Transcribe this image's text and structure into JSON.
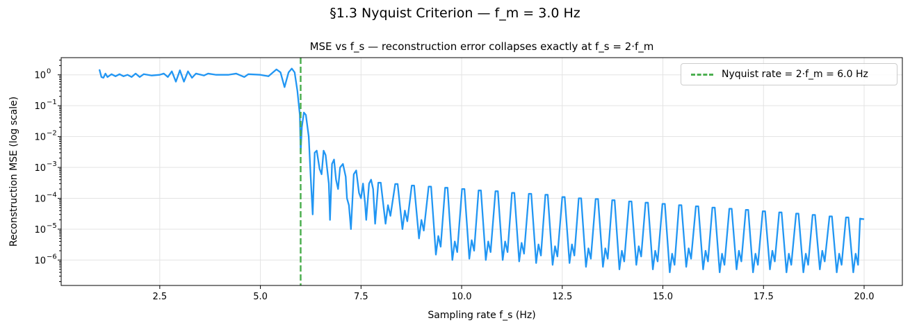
{
  "suptitle": "§1.3 Nyquist Criterion — f_m = 3.0 Hz",
  "chart_data": {
    "type": "line",
    "title": "MSE vs f_s — reconstruction error collapses exactly at f_s = 2·f_m",
    "xlabel": "Sampling rate f_s (Hz)",
    "ylabel": "Reconstruction MSE (log scale)",
    "xlim": [
      0.05,
      20.95
    ],
    "ylim": [
      1.5e-07,
      3.6
    ],
    "yscale": "log",
    "grid": true,
    "legend_position": "top-right",
    "xticks": [
      "2.5",
      "5.0",
      "7.5",
      "10.0",
      "12.5",
      "15.0",
      "17.5",
      "20.0"
    ],
    "yticks": [
      "0",
      "-1",
      "-2",
      "-3",
      "-4",
      "-5",
      "-6"
    ],
    "ytick_base": "10",
    "series": [
      {
        "color": "#2196f3",
        "points": [
          [
            1.0,
            1.5
          ],
          [
            1.05,
            0.85
          ],
          [
            1.1,
            0.8
          ],
          [
            1.15,
            1.1
          ],
          [
            1.2,
            0.85
          ],
          [
            1.3,
            1.05
          ],
          [
            1.4,
            0.9
          ],
          [
            1.5,
            1.05
          ],
          [
            1.6,
            0.9
          ],
          [
            1.7,
            1.0
          ],
          [
            1.8,
            0.85
          ],
          [
            1.9,
            1.1
          ],
          [
            2.0,
            0.85
          ],
          [
            2.1,
            1.05
          ],
          [
            2.3,
            0.95
          ],
          [
            2.5,
            1.0
          ],
          [
            2.6,
            1.1
          ],
          [
            2.7,
            0.85
          ],
          [
            2.8,
            1.3
          ],
          [
            2.9,
            0.6
          ],
          [
            3.0,
            1.4
          ],
          [
            3.1,
            0.6
          ],
          [
            3.2,
            1.3
          ],
          [
            3.3,
            0.8
          ],
          [
            3.4,
            1.1
          ],
          [
            3.6,
            0.95
          ],
          [
            3.7,
            1.1
          ],
          [
            3.9,
            1.0
          ],
          [
            4.2,
            1.0
          ],
          [
            4.4,
            1.1
          ],
          [
            4.6,
            0.85
          ],
          [
            4.7,
            1.05
          ],
          [
            5.0,
            1.0
          ],
          [
            5.2,
            0.9
          ],
          [
            5.4,
            1.5
          ],
          [
            5.5,
            1.2
          ],
          [
            5.6,
            0.4
          ],
          [
            5.7,
            1.2
          ],
          [
            5.78,
            1.6
          ],
          [
            5.85,
            1.2
          ],
          [
            5.92,
            0.3
          ],
          [
            5.98,
            0.05
          ],
          [
            6.0,
            0.003
          ],
          [
            6.03,
            0.02
          ],
          [
            6.08,
            0.06
          ],
          [
            6.13,
            0.05
          ],
          [
            6.2,
            0.01
          ],
          [
            6.25,
            0.0005
          ],
          [
            6.3,
            3e-05
          ],
          [
            6.35,
            0.003
          ],
          [
            6.4,
            0.0035
          ],
          [
            6.47,
            0.0009
          ],
          [
            6.52,
            0.0006
          ],
          [
            6.57,
            0.0035
          ],
          [
            6.62,
            0.0025
          ],
          [
            6.7,
            0.0003
          ],
          [
            6.73,
            2e-05
          ],
          [
            6.78,
            0.0013
          ],
          [
            6.83,
            0.0018
          ],
          [
            6.88,
            0.0004
          ],
          [
            6.93,
            0.0002
          ],
          [
            6.98,
            0.001
          ],
          [
            7.05,
            0.0013
          ],
          [
            7.12,
            0.0005
          ],
          [
            7.15,
            0.0001
          ],
          [
            7.2,
            6e-05
          ],
          [
            7.25,
            1e-05
          ],
          [
            7.32,
            0.0006
          ],
          [
            7.38,
            0.0008
          ],
          [
            7.45,
            0.00015
          ],
          [
            7.5,
            0.0001
          ],
          [
            7.55,
            0.0003
          ],
          [
            7.6,
            7e-05
          ],
          [
            7.63,
            2e-05
          ],
          [
            7.7,
            0.0003
          ],
          [
            7.75,
            0.0004
          ],
          [
            7.8,
            0.0002
          ],
          [
            7.85,
            1.5e-05
          ],
          [
            7.93,
            0.00032
          ],
          [
            7.99,
            0.00032
          ],
          [
            8.11,
            1.5e-05
          ],
          [
            8.17,
            6e-05
          ],
          [
            8.23,
            2.7e-05
          ],
          [
            8.35,
            0.00029
          ],
          [
            8.41,
            0.00029
          ],
          [
            8.53,
            1e-05
          ],
          [
            8.59,
            4e-05
          ],
          [
            8.65,
            1.8e-05
          ],
          [
            8.76,
            0.00026
          ],
          [
            8.82,
            0.00026
          ],
          [
            8.94,
            5e-06
          ],
          [
            9.0,
            2e-05
          ],
          [
            9.06,
            9e-06
          ],
          [
            9.18,
            0.00024
          ],
          [
            9.24,
            0.00024
          ],
          [
            9.36,
            1.5e-06
          ],
          [
            9.42,
            6e-06
          ],
          [
            9.48,
            2.7e-06
          ],
          [
            9.59,
            0.00022
          ],
          [
            9.65,
            0.00022
          ],
          [
            9.77,
            1e-06
          ],
          [
            9.83,
            4e-06
          ],
          [
            9.89,
            1.8e-06
          ],
          [
            10.01,
            0.0002
          ],
          [
            10.07,
            0.0002
          ],
          [
            10.19,
            1.1e-06
          ],
          [
            10.25,
            4.4e-06
          ],
          [
            10.31,
            2e-06
          ],
          [
            10.42,
            0.00018
          ],
          [
            10.48,
            0.00018
          ],
          [
            10.6,
            1e-06
          ],
          [
            10.66,
            4e-06
          ],
          [
            10.72,
            1.8e-06
          ],
          [
            10.84,
            0.00017
          ],
          [
            10.9,
            0.00017
          ],
          [
            11.02,
            1e-06
          ],
          [
            11.08,
            4e-06
          ],
          [
            11.14,
            1.8e-06
          ],
          [
            11.25,
            0.00015
          ],
          [
            11.31,
            0.00015
          ],
          [
            11.43,
            9e-07
          ],
          [
            11.49,
            3.6e-06
          ],
          [
            11.55,
            1.6e-06
          ],
          [
            11.67,
            0.00014
          ],
          [
            11.73,
            0.00014
          ],
          [
            11.85,
            8e-07
          ],
          [
            11.91,
            3.2e-06
          ],
          [
            11.97,
            1.4e-06
          ],
          [
            12.08,
            0.00013
          ],
          [
            12.14,
            0.00013
          ],
          [
            12.26,
            7e-07
          ],
          [
            12.32,
            2.8e-06
          ],
          [
            12.38,
            1.3e-06
          ],
          [
            12.5,
            0.00011
          ],
          [
            12.56,
            0.00011
          ],
          [
            12.68,
            8e-07
          ],
          [
            12.74,
            3.2e-06
          ],
          [
            12.8,
            1.4e-06
          ],
          [
            12.91,
            0.0001
          ],
          [
            12.97,
            0.0001
          ],
          [
            13.09,
            6e-07
          ],
          [
            13.15,
            2.4e-06
          ],
          [
            13.21,
            1.1e-06
          ],
          [
            13.33,
            9.5e-05
          ],
          [
            13.39,
            9.5e-05
          ],
          [
            13.51,
            6e-07
          ],
          [
            13.57,
            2.4e-06
          ],
          [
            13.63,
            1.1e-06
          ],
          [
            13.74,
            8.7e-05
          ],
          [
            13.8,
            8.7e-05
          ],
          [
            13.92,
            5e-07
          ],
          [
            13.98,
            2e-06
          ],
          [
            14.04,
            9e-07
          ],
          [
            14.16,
            7.9e-05
          ],
          [
            14.22,
            7.9e-05
          ],
          [
            14.34,
            7e-07
          ],
          [
            14.4,
            2.8e-06
          ],
          [
            14.46,
            1.3e-06
          ],
          [
            14.57,
            7.2e-05
          ],
          [
            14.63,
            7.2e-05
          ],
          [
            14.75,
            5e-07
          ],
          [
            14.81,
            2e-06
          ],
          [
            14.87,
            9e-07
          ],
          [
            14.99,
            6.6e-05
          ],
          [
            15.05,
            6.6e-05
          ],
          [
            15.17,
            4e-07
          ],
          [
            15.23,
            1.6e-06
          ],
          [
            15.29,
            7e-07
          ],
          [
            15.4,
            6e-05
          ],
          [
            15.46,
            6e-05
          ],
          [
            15.58,
            6e-07
          ],
          [
            15.64,
            2.4e-06
          ],
          [
            15.7,
            1.1e-06
          ],
          [
            15.82,
            5.5e-05
          ],
          [
            15.88,
            5.5e-05
          ],
          [
            16.0,
            5e-07
          ],
          [
            16.06,
            2e-06
          ],
          [
            16.12,
            9e-07
          ],
          [
            16.23,
            5e-05
          ],
          [
            16.29,
            5e-05
          ],
          [
            16.41,
            4e-07
          ],
          [
            16.47,
            1.6e-06
          ],
          [
            16.53,
            7e-07
          ],
          [
            16.65,
            4.6e-05
          ],
          [
            16.71,
            4.6e-05
          ],
          [
            16.83,
            5e-07
          ],
          [
            16.89,
            2e-06
          ],
          [
            16.95,
            9e-07
          ],
          [
            17.06,
            4.2e-05
          ],
          [
            17.12,
            4.2e-05
          ],
          [
            17.24,
            4e-07
          ],
          [
            17.3,
            1.6e-06
          ],
          [
            17.36,
            7e-07
          ],
          [
            17.48,
            3.8e-05
          ],
          [
            17.54,
            3.8e-05
          ],
          [
            17.66,
            5e-07
          ],
          [
            17.72,
            2e-06
          ],
          [
            17.78,
            9e-07
          ],
          [
            17.89,
            3.5e-05
          ],
          [
            17.95,
            3.5e-05
          ],
          [
            18.07,
            4e-07
          ],
          [
            18.13,
            1.6e-06
          ],
          [
            18.19,
            7e-07
          ],
          [
            18.31,
            3.2e-05
          ],
          [
            18.37,
            3.2e-05
          ],
          [
            18.49,
            4e-07
          ],
          [
            18.55,
            1.6e-06
          ],
          [
            18.61,
            7e-07
          ],
          [
            18.72,
            2.9e-05
          ],
          [
            18.78,
            2.9e-05
          ],
          [
            18.9,
            5e-07
          ],
          [
            18.96,
            2e-06
          ],
          [
            19.02,
            9e-07
          ],
          [
            19.14,
            2.6e-05
          ],
          [
            19.2,
            2.6e-05
          ],
          [
            19.32,
            4e-07
          ],
          [
            19.38,
            1.6e-06
          ],
          [
            19.44,
            7e-07
          ],
          [
            19.55,
            2.4e-05
          ],
          [
            19.61,
            2.4e-05
          ],
          [
            19.73,
            4e-07
          ],
          [
            19.79,
            1.6e-06
          ],
          [
            19.85,
            7e-07
          ],
          [
            19.9,
            2.2e-05
          ],
          [
            20.0,
            2.1e-05
          ]
        ]
      }
    ],
    "vline": {
      "x": 6.0,
      "color": "#4caf50",
      "label": "Nyquist rate = 2·f_m = 6.0 Hz"
    }
  }
}
